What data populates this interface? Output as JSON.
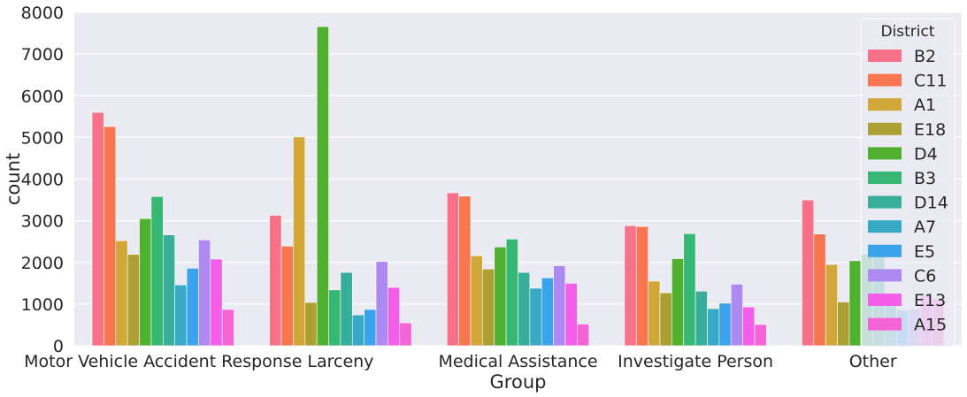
{
  "chart_data": {
    "type": "bar",
    "title": "",
    "xlabel": "Group",
    "ylabel": "count",
    "ylim": [
      0,
      8000
    ],
    "yticks": [
      0,
      1000,
      2000,
      3000,
      4000,
      5000,
      6000,
      7000,
      8000
    ],
    "grid": true,
    "legend_title": "District",
    "legend_position": "top-right",
    "categories": [
      "Motor Vehicle Accident Response",
      "Larceny",
      "Medical Assistance",
      "Investigate Person",
      "Other"
    ],
    "series": [
      {
        "name": "B2",
        "color": "#f77189",
        "values": [
          5600,
          3130,
          3670,
          2880,
          3500
        ]
      },
      {
        "name": "C11",
        "color": "#f7754f",
        "values": [
          5260,
          2390,
          3590,
          2860,
          2680
        ]
      },
      {
        "name": "A1",
        "color": "#d0a738",
        "values": [
          2520,
          5010,
          2160,
          1550,
          1950
        ]
      },
      {
        "name": "E18",
        "color": "#aca032",
        "values": [
          2190,
          1040,
          1840,
          1270,
          1050
        ]
      },
      {
        "name": "D4",
        "color": "#50b131",
        "values": [
          3050,
          7660,
          2370,
          2090,
          2040
        ]
      },
      {
        "name": "B3",
        "color": "#36b874",
        "values": [
          3580,
          1340,
          2560,
          2690,
          2200
        ]
      },
      {
        "name": "D14",
        "color": "#37ae99",
        "values": [
          2660,
          1760,
          1760,
          1310,
          2300
        ]
      },
      {
        "name": "A7",
        "color": "#38a9c5",
        "values": [
          1460,
          740,
          1380,
          890,
          1000
        ]
      },
      {
        "name": "E5",
        "color": "#3ba3ec",
        "values": [
          1860,
          870,
          1630,
          1020,
          850
        ]
      },
      {
        "name": "C6",
        "color": "#ad8af2",
        "values": [
          2540,
          2020,
          1920,
          1480,
          880
        ]
      },
      {
        "name": "E13",
        "color": "#f45fe9",
        "values": [
          2080,
          1400,
          1500,
          930,
          1200
        ]
      },
      {
        "name": "A15",
        "color": "#f564d4",
        "values": [
          870,
          550,
          520,
          510,
          1120
        ]
      }
    ]
  }
}
